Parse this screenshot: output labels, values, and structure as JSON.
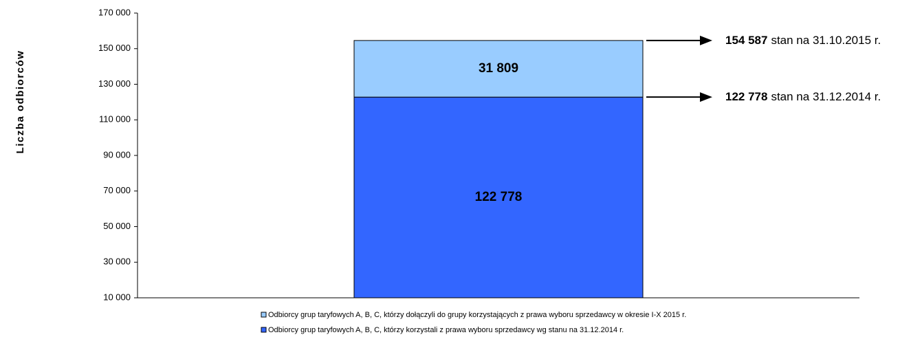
{
  "chart_data": {
    "type": "stacked_bar",
    "y_label": "Liczba odbiorców",
    "categories": [
      null
    ],
    "series": [
      {
        "name": "Odbiorcy grup taryfowych A, B, C, którzy korzystali z prawa wyboru sprzedawcy wg stanu na 31.12.2014 r.",
        "color": "#3366ff",
        "values": [
          122778
        ],
        "value_labels": [
          "122 778"
        ]
      },
      {
        "name": "Odbiorcy grup taryfowych A, B, C, którzy dołączyli do grupy korzystających z  prawa wyboru sprzedawcy w okresie I-X 2015 r.",
        "color": "#99ccff",
        "values": [
          31809
        ],
        "value_labels": [
          "31 809"
        ]
      }
    ],
    "ylim": [
      10000,
      170000
    ],
    "yticks": [
      {
        "value": 10000,
        "label": "10 000"
      },
      {
        "value": 30000,
        "label": "30 000"
      },
      {
        "value": 50000,
        "label": "50 000"
      },
      {
        "value": 70000,
        "label": "70 000"
      },
      {
        "value": 90000,
        "label": "90 000"
      },
      {
        "value": 110000,
        "label": "110 000"
      },
      {
        "value": 130000,
        "label": "130 000"
      },
      {
        "value": 150000,
        "label": "150 000"
      },
      {
        "value": 170000,
        "label": "170 000"
      }
    ],
    "annotations": [
      {
        "value": 154587,
        "label": "154 587",
        "text": "stan na 31.10.2015 r."
      },
      {
        "value": 122778,
        "label": "122 778",
        "text": "stan na 31.12.2014 r."
      }
    ]
  }
}
